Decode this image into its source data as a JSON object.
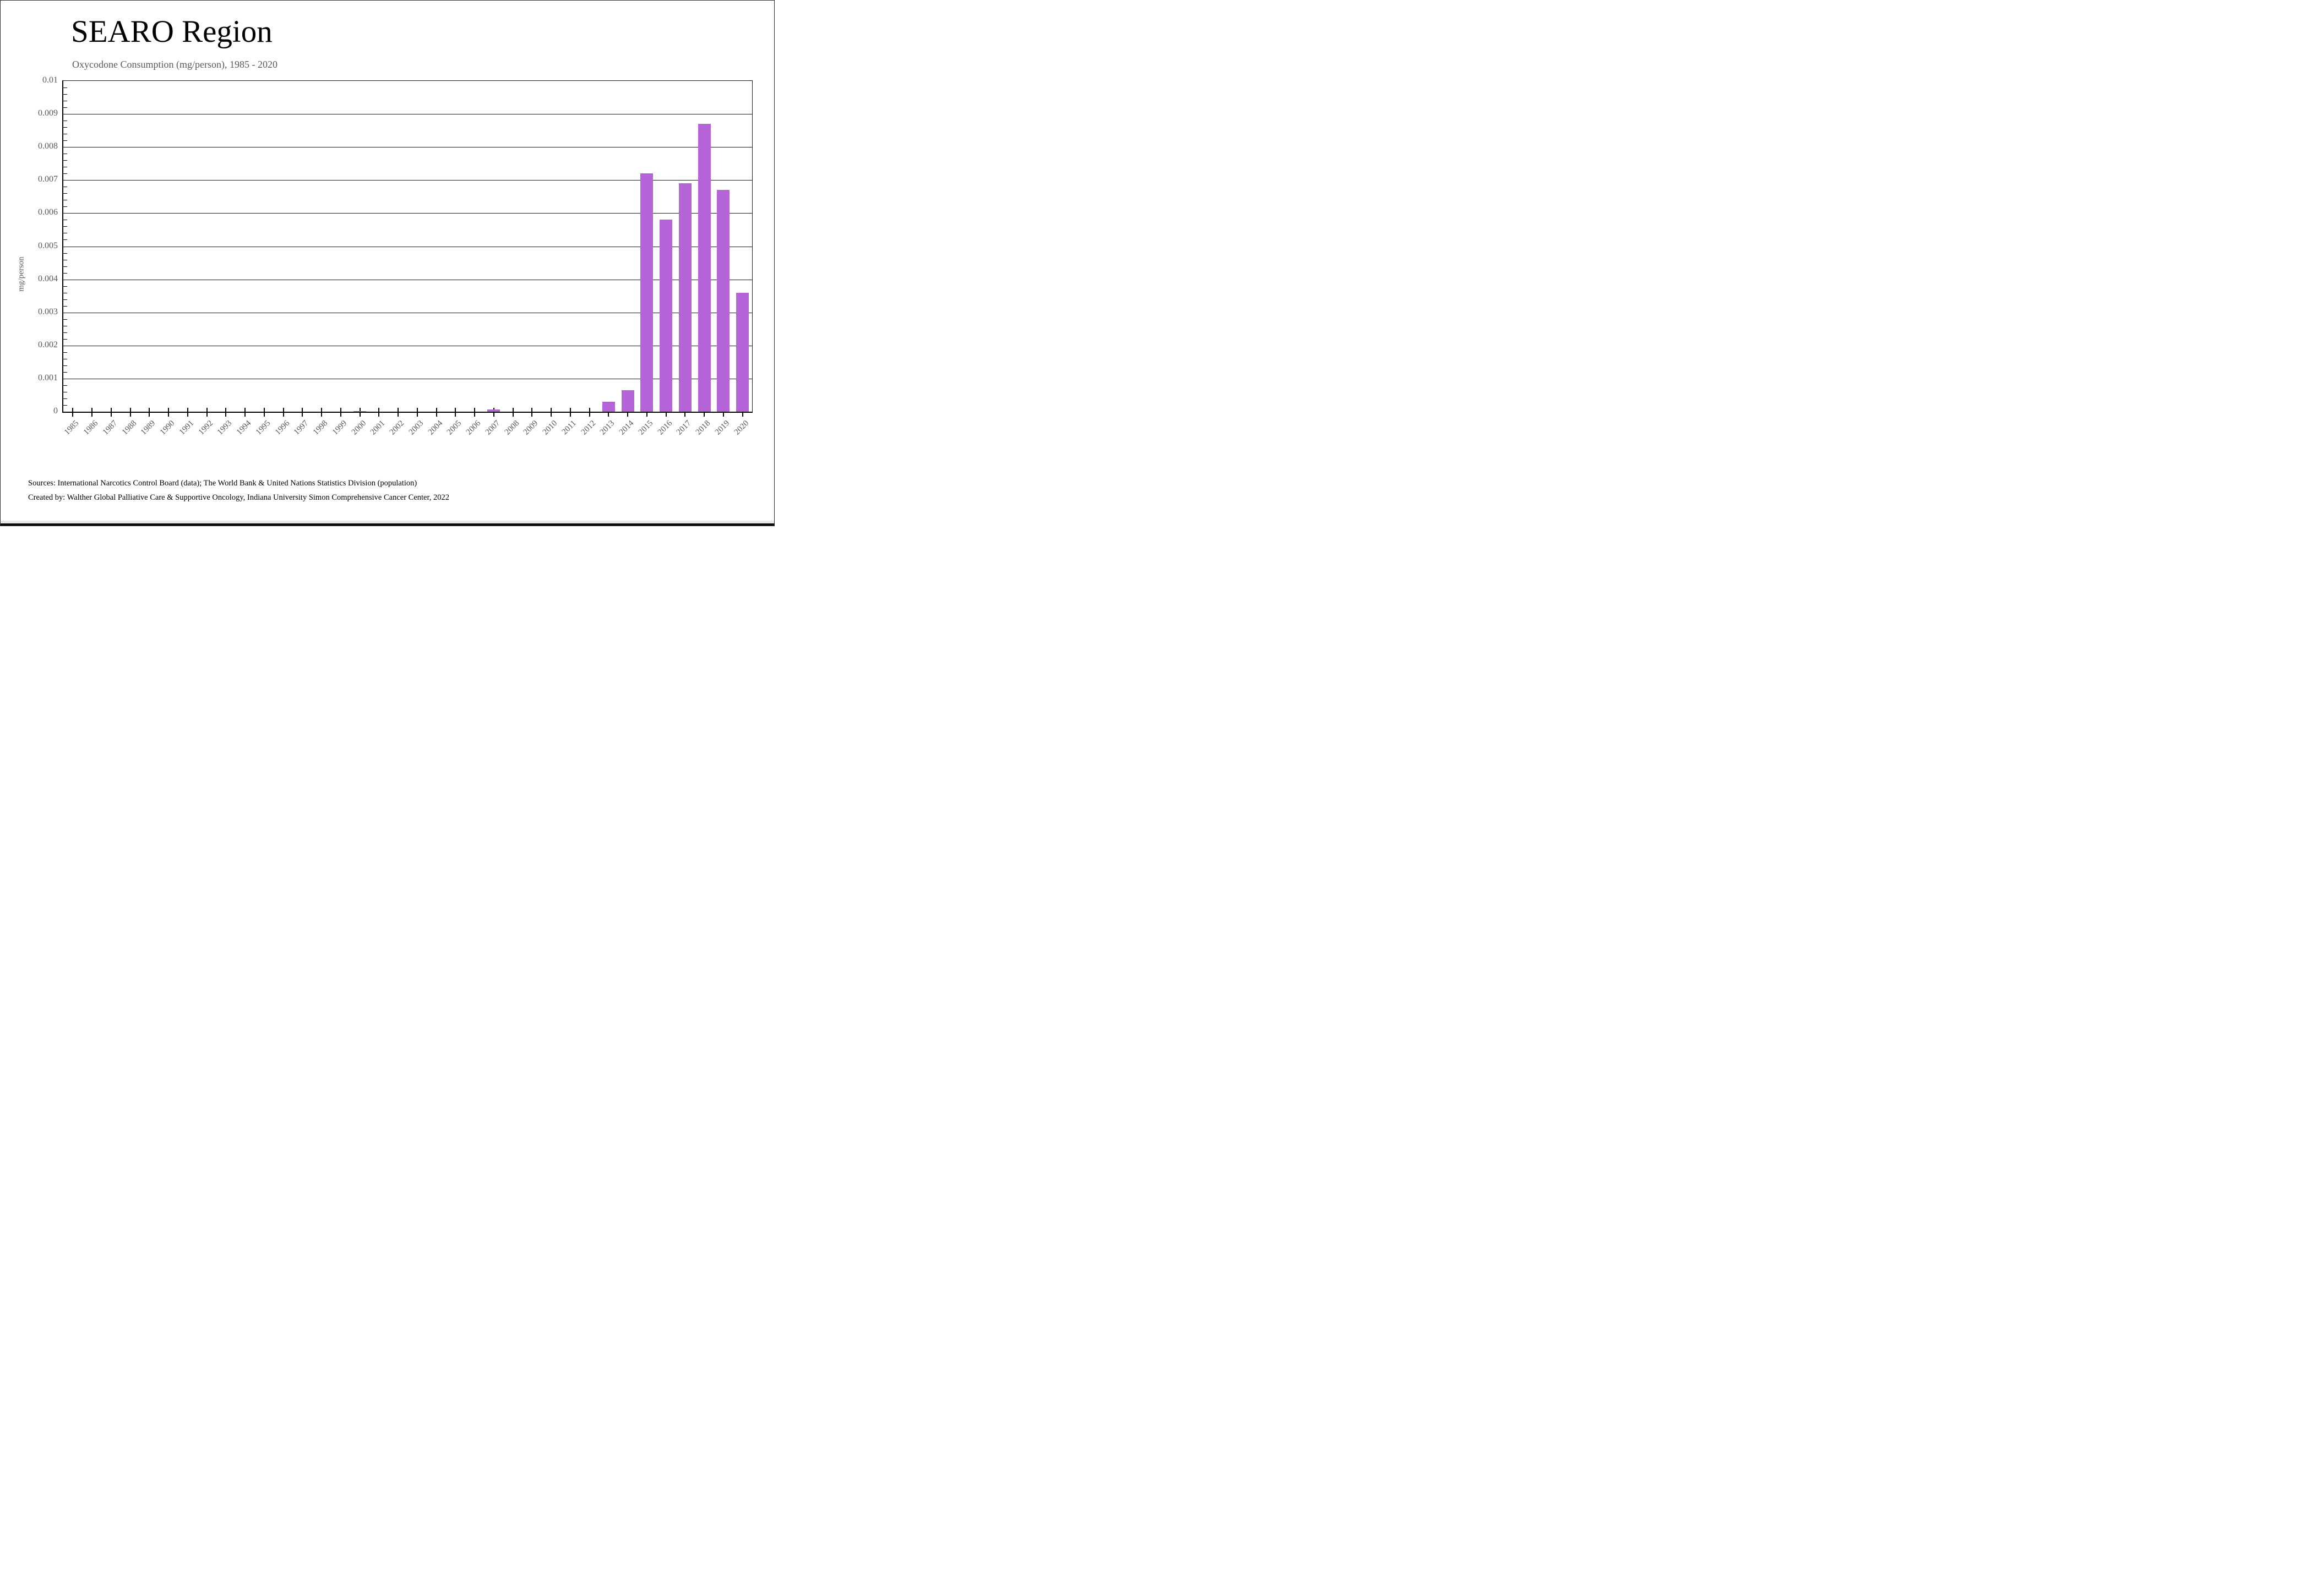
{
  "page": {
    "title": "SEARO Region",
    "subtitle": "Oxycodone Consumption (mg/person), 1985 - 2020",
    "footer_line1": "Sources: International Narcotics Control Board (data); The World Bank & United Nations Statistics Division (population)",
    "footer_line2": "Created by: Walther Global Palliative Care & Supportive Oncology, Indiana University Simon Comprehensive Cancer Center, 2022"
  },
  "chart_data": {
    "type": "bar",
    "title": "SEARO Region",
    "subtitle": "Oxycodone Consumption (mg/person), 1985 - 2020",
    "xlabel": "",
    "ylabel": "mg/person",
    "ylim": [
      0,
      0.01
    ],
    "y_major_step": 0.001,
    "y_minor_step": 0.0002,
    "grid": "horizontal-major",
    "legend_position": "none",
    "bar_color": "#b464d7",
    "gridline_color": "#1a1a1a",
    "axis_color": "#000000",
    "tick_label_color": "#595959",
    "categories": [
      1985,
      1986,
      1987,
      1988,
      1989,
      1990,
      1991,
      1992,
      1993,
      1994,
      1995,
      1996,
      1997,
      1998,
      1999,
      2000,
      2001,
      2002,
      2003,
      2004,
      2005,
      2006,
      2007,
      2008,
      2009,
      2010,
      2011,
      2012,
      2013,
      2014,
      2015,
      2016,
      2017,
      2018,
      2019,
      2020
    ],
    "values": [
      0,
      0,
      0,
      0,
      0,
      0,
      0,
      0,
      0,
      0,
      0,
      0,
      0,
      0,
      0,
      2e-05,
      0,
      0,
      0,
      0,
      0,
      0,
      6e-05,
      0,
      0,
      0,
      0,
      0,
      0.0003,
      0.00065,
      0.0072,
      0.0058,
      0.0069,
      0.0087,
      0.0067,
      0.0036
    ]
  }
}
